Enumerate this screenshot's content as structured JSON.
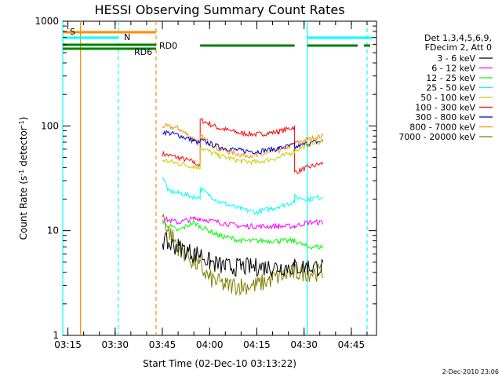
{
  "chart_data": {
    "type": "line",
    "title": "HESSI Observing Summary Count Rates",
    "xlabel": "Start Time (02-Dec-10 03:13:22)",
    "ylabel": "Count Rate (s⁻¹ detector⁻¹)",
    "yscale": "log",
    "ylim": [
      1,
      1000
    ],
    "xlim": [
      "03:13:22",
      "04:53:00"
    ],
    "y_ticks": [
      {
        "label": "1",
        "value": 1
      },
      {
        "label": "10",
        "value": 10
      },
      {
        "label": "100",
        "value": 100
      },
      {
        "label": "1000",
        "value": 1000
      }
    ],
    "x_ticks": [
      "03:15",
      "03:30",
      "03:45",
      "04:00",
      "04:15",
      "04:30",
      "04:45"
    ],
    "legend": {
      "position": "right",
      "header": [
        "Det 1,3,4,5,6,9,",
        "FDecim 2, Att 0"
      ],
      "entries": [
        {
          "name": "3 - 6 keV",
          "color": "#000000"
        },
        {
          "name": "6 - 12 keV",
          "color": "#ff00ff"
        },
        {
          "name": "12 - 25 keV",
          "color": "#00ff00"
        },
        {
          "name": "25 - 50 keV",
          "color": "#00ffff"
        },
        {
          "name": "50 - 100 keV",
          "color": "#cccc00"
        },
        {
          "name": "100 - 300 keV",
          "color": "#ff0000"
        },
        {
          "name": "300 - 800 keV",
          "color": "#0000cc"
        },
        {
          "name": "800 - 7000 keV",
          "color": "#ff8c00"
        },
        {
          "name": "7000 - 20000 keV",
          "color": "#808000"
        }
      ]
    },
    "annotations": {
      "S": {
        "label": "S",
        "color": "#ff8c00",
        "start": "03:13:22",
        "end": "03:43:00"
      },
      "N": {
        "label": "N",
        "color": "#00ffff",
        "segments": [
          [
            "03:13:22",
            "03:31:00"
          ],
          [
            "04:31:00",
            "04:52:00"
          ]
        ]
      },
      "RD0": {
        "label": "RD0",
        "color": "#008000"
      },
      "RD6": {
        "label": "RD6",
        "color": "#008000"
      },
      "flag_bar_segments": [
        [
          "03:13:22",
          "03:43:00"
        ],
        [
          "03:57:00",
          "04:27:00"
        ],
        [
          "04:31:00",
          "04:47:00"
        ],
        [
          "04:49:00",
          "04:51:00"
        ]
      ]
    },
    "vlines": [
      {
        "time": "03:13:22",
        "color": "#00ffff",
        "style": "solid"
      },
      {
        "time": "03:19:00",
        "color": "#ff8c00",
        "style": "solid"
      },
      {
        "time": "03:31:00",
        "color": "#00ffff",
        "style": "dashed"
      },
      {
        "time": "03:43:00",
        "color": "#ff8c00",
        "style": "dashed"
      },
      {
        "time": "04:31:00",
        "color": "#00ffff",
        "style": "solid"
      },
      {
        "time": "04:50:00",
        "color": "#00ffff",
        "style": "dashed"
      }
    ],
    "data_windows": [
      [
        "03:45:00",
        "03:57:00"
      ],
      [
        "03:57:00",
        "04:27:00"
      ],
      [
        "04:27:00",
        "04:36:00"
      ]
    ],
    "series": [
      {
        "name": "100 - 300 keV",
        "color": "#ff0000",
        "points": [
          [
            "03:45",
            54
          ],
          [
            "03:50",
            50
          ],
          [
            "03:55",
            45
          ],
          [
            "03:57",
            42
          ],
          [
            "03:57",
            115
          ],
          [
            "04:03",
            95
          ],
          [
            "04:10",
            85
          ],
          [
            "04:15",
            83
          ],
          [
            "04:22",
            88
          ],
          [
            "04:27",
            98
          ],
          [
            "04:27",
            36
          ],
          [
            "04:31",
            40
          ],
          [
            "04:36",
            44
          ]
        ]
      },
      {
        "name": "800 - 7000 keV",
        "color": "#ff8c00",
        "points": [
          [
            "03:45",
            100
          ],
          [
            "03:50",
            95
          ],
          [
            "03:55",
            75
          ],
          [
            "03:57",
            68
          ],
          [
            "03:57",
            80
          ],
          [
            "04:03",
            60
          ],
          [
            "04:10",
            53
          ],
          [
            "04:15",
            52
          ],
          [
            "04:22",
            58
          ],
          [
            "04:27",
            67
          ],
          [
            "04:27",
            68
          ],
          [
            "04:31",
            74
          ],
          [
            "04:36",
            80
          ]
        ]
      },
      {
        "name": "300 - 800 keV",
        "color": "#0000cc",
        "points": [
          [
            "03:45",
            88
          ],
          [
            "03:50",
            82
          ],
          [
            "03:55",
            72
          ],
          [
            "03:57",
            68
          ],
          [
            "03:57",
            73
          ],
          [
            "04:03",
            63
          ],
          [
            "04:10",
            58
          ],
          [
            "04:15",
            57
          ],
          [
            "04:22",
            61
          ],
          [
            "04:27",
            66
          ],
          [
            "04:27",
            62
          ],
          [
            "04:31",
            68
          ],
          [
            "04:36",
            72
          ]
        ]
      },
      {
        "name": "50 - 100 keV",
        "color": "#cccc00",
        "points": [
          [
            "03:45",
            47
          ],
          [
            "03:50",
            44
          ],
          [
            "03:55",
            41
          ],
          [
            "03:57",
            40
          ],
          [
            "03:57",
            62
          ],
          [
            "04:03",
            52
          ],
          [
            "04:10",
            46
          ],
          [
            "04:15",
            45
          ],
          [
            "04:22",
            50
          ],
          [
            "04:27",
            57
          ],
          [
            "04:27",
            58
          ],
          [
            "04:31",
            66
          ],
          [
            "04:36",
            72
          ]
        ]
      },
      {
        "name": "25 - 50 keV",
        "color": "#00ffff",
        "points": [
          [
            "03:45",
            33
          ],
          [
            "03:47",
            24
          ],
          [
            "03:50",
            23
          ],
          [
            "03:55",
            21
          ],
          [
            "03:57",
            21
          ],
          [
            "03:57",
            25
          ],
          [
            "04:03",
            19
          ],
          [
            "04:10",
            16
          ],
          [
            "04:15",
            15
          ],
          [
            "04:22",
            17
          ],
          [
            "04:27",
            19
          ],
          [
            "04:27",
            21
          ],
          [
            "04:31",
            20
          ],
          [
            "04:36",
            21
          ]
        ]
      },
      {
        "name": "6 - 12 keV",
        "color": "#ff00ff",
        "points": [
          [
            "03:45",
            13
          ],
          [
            "03:50",
            12
          ],
          [
            "03:55",
            13
          ],
          [
            "03:57",
            13
          ],
          [
            "04:03",
            12
          ],
          [
            "04:10",
            11
          ],
          [
            "04:15",
            11
          ],
          [
            "04:22",
            11
          ],
          [
            "04:27",
            11
          ],
          [
            "04:31",
            12
          ],
          [
            "04:36",
            12
          ]
        ]
      },
      {
        "name": "12 - 25 keV",
        "color": "#00ff00",
        "points": [
          [
            "03:45",
            12
          ],
          [
            "03:50",
            10
          ],
          [
            "03:55",
            12
          ],
          [
            "03:57",
            11
          ],
          [
            "04:03",
            9
          ],
          [
            "04:10",
            8
          ],
          [
            "04:15",
            8
          ],
          [
            "04:22",
            8
          ],
          [
            "04:27",
            8
          ],
          [
            "04:31",
            7
          ],
          [
            "04:36",
            7
          ]
        ]
      },
      {
        "name": "7000 - 20000 keV",
        "color": "#808000",
        "points": [
          [
            "03:45",
            14
          ],
          [
            "03:47",
            10
          ],
          [
            "03:50",
            7
          ],
          [
            "03:55",
            5
          ],
          [
            "03:57",
            4.5
          ],
          [
            "04:00",
            3.5
          ],
          [
            "04:05",
            3
          ],
          [
            "04:10",
            3
          ],
          [
            "04:15",
            3
          ],
          [
            "04:20",
            3.5
          ],
          [
            "04:27",
            4
          ],
          [
            "04:31",
            4
          ],
          [
            "04:36",
            4
          ]
        ]
      },
      {
        "name": "3 - 6 keV",
        "color": "#000000",
        "points": [
          [
            "03:45",
            8
          ],
          [
            "03:47",
            7.5
          ],
          [
            "03:50",
            7
          ],
          [
            "03:55",
            6
          ],
          [
            "03:57",
            6
          ],
          [
            "04:00",
            5
          ],
          [
            "04:05",
            4.5
          ],
          [
            "04:10",
            4.5
          ],
          [
            "04:15",
            4.5
          ],
          [
            "04:20",
            4.5
          ],
          [
            "04:27",
            4.5
          ],
          [
            "04:31",
            4.5
          ],
          [
            "04:36",
            4.5
          ]
        ]
      }
    ]
  },
  "footer": {
    "date_stamp": "2-Dec-2010 23:06"
  }
}
